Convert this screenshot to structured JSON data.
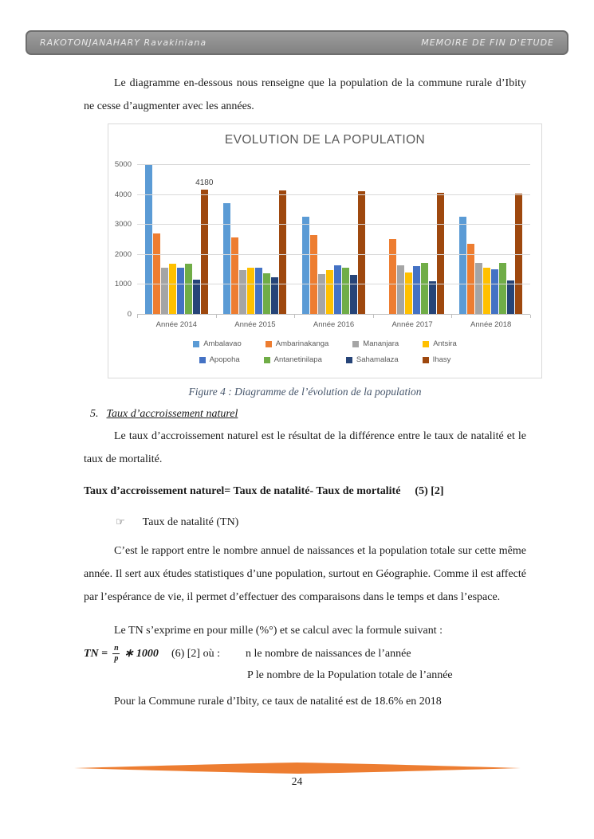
{
  "header": {
    "left": "RAKOTONJANAHARY Ravakiniana",
    "right": "MEMOIRE DE FIN D'ETUDE"
  },
  "intro_paragraph": "Le diagramme en-dessous nous renseigne que la population de la commune rurale d’Ibity ne cesse d’augmenter avec les années.",
  "chart_data": {
    "type": "bar",
    "title": "EVOLUTION DE LA POPULATION",
    "categories": [
      "Année 2014",
      "Année 2015",
      "Année 2016",
      "Année 2017",
      "Année 2018"
    ],
    "series": [
      {
        "name": "Ambalavao",
        "color": "#5B9BD5",
        "values": [
          5000,
          3730,
          3270,
          0,
          3280
        ]
      },
      {
        "name": "Ambarinakanga",
        "color": "#ED7D31",
        "values": [
          2700,
          2590,
          2670,
          2530,
          2370
        ]
      },
      {
        "name": "Mananjara",
        "color": "#A5A5A5",
        "values": [
          1560,
          1480,
          1350,
          1650,
          1730
        ]
      },
      {
        "name": "Antsira",
        "color": "#FFC000",
        "values": [
          1700,
          1580,
          1500,
          1420,
          1570
        ]
      },
      {
        "name": "Apopoha",
        "color": "#4472C4",
        "values": [
          1560,
          1580,
          1650,
          1610,
          1520
        ]
      },
      {
        "name": "Antanetinilapa",
        "color": "#70AD47",
        "values": [
          1710,
          1370,
          1580,
          1730,
          1730
        ]
      },
      {
        "name": "Sahamalaza",
        "color": "#264478",
        "values": [
          1160,
          1250,
          1330,
          1130,
          1140
        ]
      },
      {
        "name": "Ihasy",
        "color": "#9E480E",
        "values": [
          4180,
          4150,
          4120,
          4080,
          4050
        ]
      }
    ],
    "data_labels": [
      {
        "series": "Ihasy",
        "category": "Année 2014",
        "text": "4180"
      }
    ],
    "ylim": [
      0,
      5000
    ],
    "yticks": [
      0,
      1000,
      2000,
      3000,
      4000,
      5000
    ],
    "grid": true,
    "legend_position": "bottom",
    "legend_columns": 4
  },
  "figure_caption": "Figure 4 : Diagramme de l’évolution de la population",
  "section": {
    "number": "5.",
    "title": "Taux d’accroissement naturel"
  },
  "paragraphs": {
    "accroissement": "Le taux d’accroissement naturel est le résultat de la différence entre le taux de natalité et le taux de mortalité.",
    "rapport": "C’est le rapport entre le nombre annuel de naissances et la population totale sur cette même année. Il sert aux études statistiques d’une population, surtout en Géographie. Comme il est affecté par l’espérance de vie, il permet d’effectuer des comparaisons dans le temps et dans l’espace.",
    "tn_intro": "Le TN s’exprime en pour mille (%°) et se calcul avec la formule suivant :",
    "conclusion": "Pour la Commune rurale d’Ibity, ce taux de natalité est de 18.6% en 2018"
  },
  "formula5": {
    "text": "Taux d’accroissement naturel= Taux de natalité- Taux de mortalité",
    "ref": "(5) [2]"
  },
  "bullet": {
    "symbol": "☞",
    "text": "Taux de natalité (TN)"
  },
  "formula6": {
    "lhs": "TN =",
    "numerator": "n",
    "denominator": "p",
    "rest": "∗ 1000",
    "ref": "(6) [2]  où :",
    "where_n": "n le nombre de naissances de l’année",
    "where_p": "P le nombre de la Population totale de l’année"
  },
  "footer": {
    "ornament_color": "#ED7D31",
    "page_number": "24"
  }
}
